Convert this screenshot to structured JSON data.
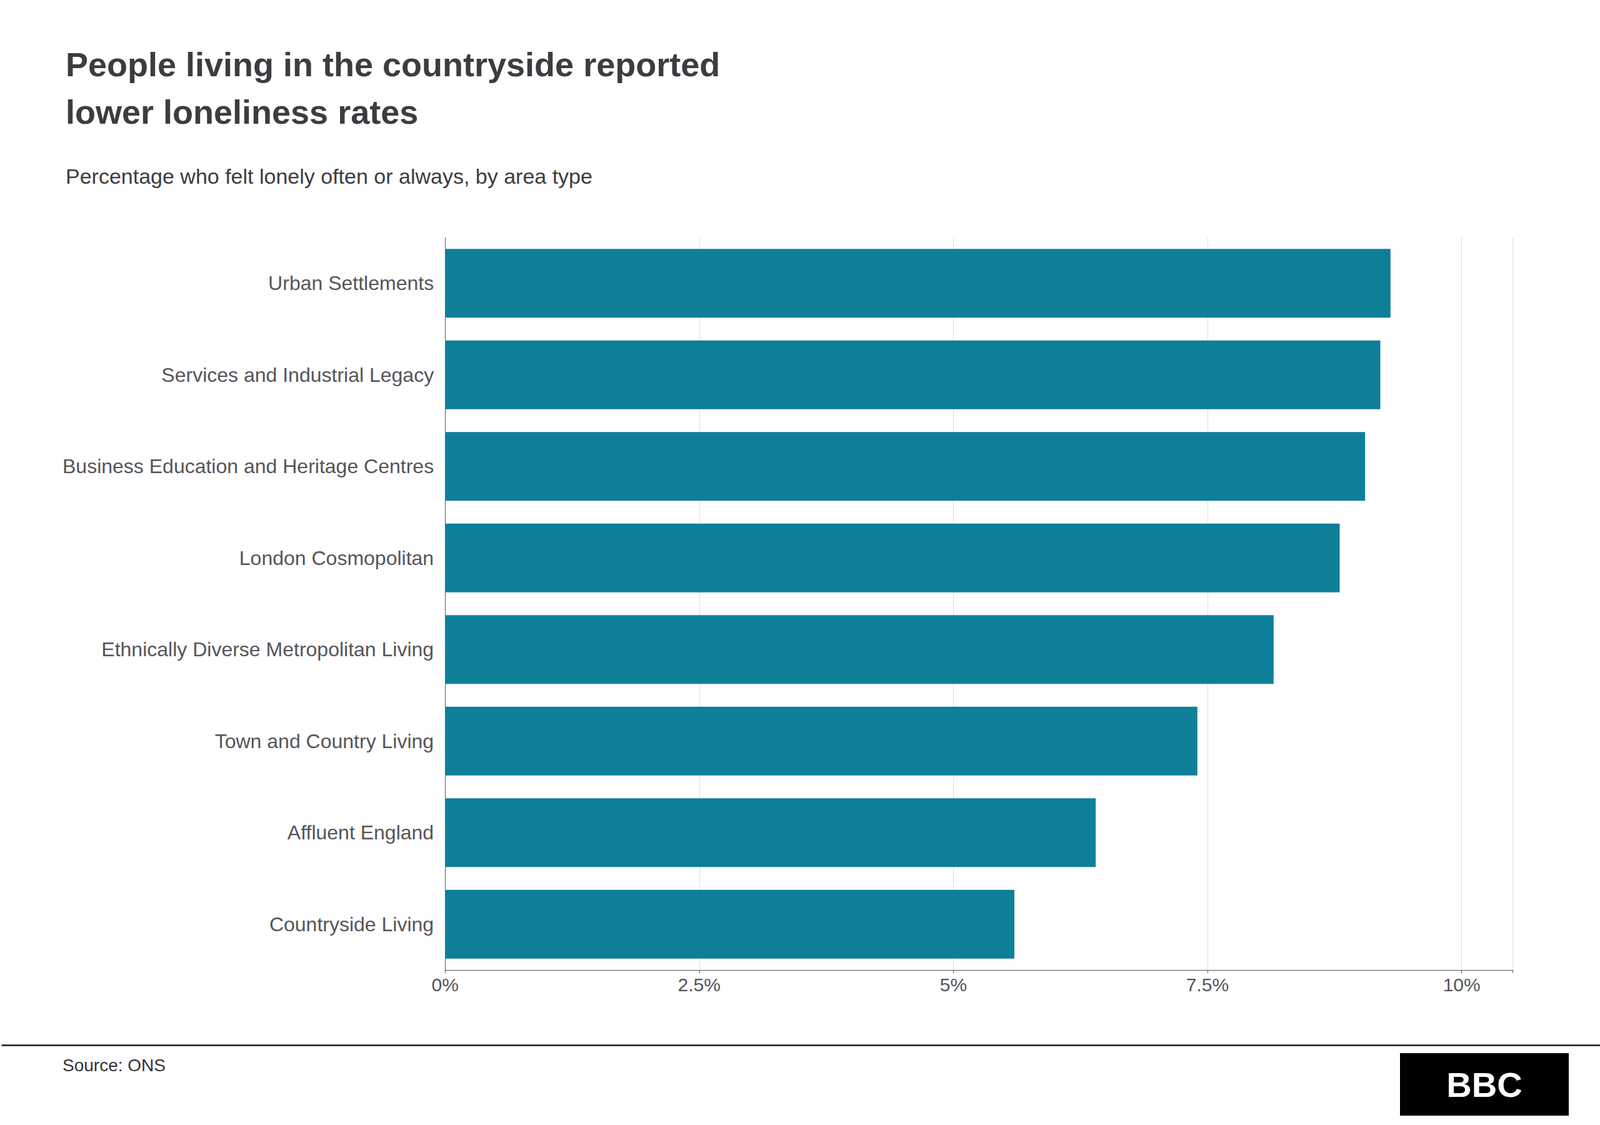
{
  "chart_data": {
    "type": "bar",
    "orientation": "horizontal",
    "title": "People living in the countryside reported\nlower loneliness rates",
    "subtitle": "Percentage who felt lonely often or always, by area type",
    "annotations": [
      "Source: ONS",
      "BBC"
    ],
    "categories": [
      "Urban Settlements",
      "Services and Industrial Legacy",
      "Business Education and Heritage Centres",
      "London Cosmopolitan",
      "Ethnically Diverse Metropolitan Living",
      "Town and Country Living",
      "Affluent England",
      "Countryside Living"
    ],
    "values": [
      9.3,
      9.2,
      9.05,
      8.8,
      8.15,
      7.4,
      6.4,
      5.6
    ],
    "color": "#0e7f99",
    "xlim": [
      0,
      10.5
    ],
    "xticks": [
      {
        "value": 0,
        "label": "0%"
      },
      {
        "value": 2.5,
        "label": "2.5%"
      },
      {
        "value": 5.0,
        "label": "5%"
      },
      {
        "value": 7.5,
        "label": "7.5%"
      },
      {
        "value": 10.0,
        "label": "10%"
      }
    ],
    "grid": true
  }
}
